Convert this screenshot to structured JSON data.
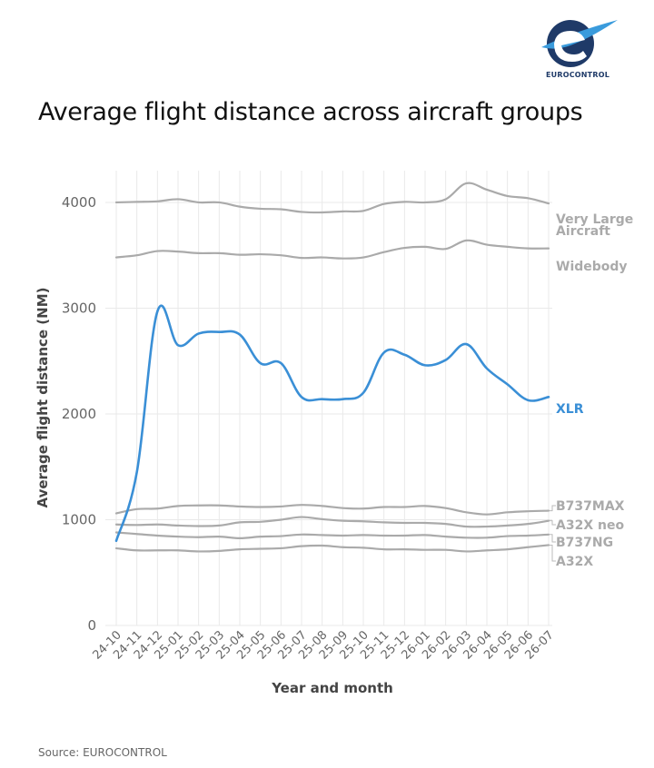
{
  "header": {
    "logo_text": "EUROCONTROL",
    "title": "Average flight distance across aircraft groups"
  },
  "footer": {
    "source": "Source: EUROCONTROL"
  },
  "colors": {
    "highlight": "#3a8fd6",
    "muted": "#aaaaaa",
    "axis_label": "#444444"
  },
  "chart_data": {
    "type": "line",
    "title": "Average flight distance across aircraft groups",
    "xlabel": "Year and month",
    "ylabel": "Average flight distance (NM)",
    "categories": [
      "24-10",
      "24-11",
      "24-12",
      "25-01",
      "25-02",
      "25-03",
      "25-04",
      "25-05",
      "25-06",
      "25-07",
      "25-08",
      "25-09",
      "25-10",
      "25-11",
      "25-12",
      "26-01",
      "26-02",
      "26-03",
      "26-04",
      "26-05",
      "26-06",
      "26-07"
    ],
    "ylim": [
      0,
      4300
    ],
    "yticks": [
      0,
      1000,
      2000,
      3000,
      4000
    ],
    "grid": "vertical",
    "legend": "direct labels at line ends",
    "series": [
      {
        "name": "Very Large Aircraft",
        "label_lines": [
          "Very Large",
          "Aircraft"
        ],
        "highlight": false,
        "values": [
          4000,
          4005,
          4010,
          4030,
          4000,
          4000,
          3960,
          3940,
          3935,
          3910,
          3905,
          3915,
          3920,
          3985,
          4005,
          4000,
          4030,
          4180,
          4120,
          4060,
          4040,
          3990
        ]
      },
      {
        "name": "Widebody",
        "label_lines": [
          "Widebody"
        ],
        "highlight": false,
        "values": [
          3480,
          3500,
          3540,
          3535,
          3520,
          3520,
          3505,
          3510,
          3500,
          3475,
          3480,
          3470,
          3480,
          3530,
          3570,
          3580,
          3560,
          3640,
          3600,
          3580,
          3565,
          3565
        ]
      },
      {
        "name": "XLR",
        "label_lines": [
          "XLR"
        ],
        "highlight": true,
        "values": [
          800,
          1450,
          2970,
          2650,
          2760,
          2775,
          2750,
          2480,
          2480,
          2160,
          2140,
          2140,
          2200,
          2580,
          2560,
          2460,
          2510,
          2660,
          2430,
          2280,
          2130,
          2160
        ]
      },
      {
        "name": "B737MAX",
        "label_lines": [
          "B737MAX"
        ],
        "highlight": false,
        "values": [
          1060,
          1100,
          1105,
          1130,
          1135,
          1135,
          1125,
          1120,
          1125,
          1140,
          1130,
          1110,
          1105,
          1120,
          1120,
          1130,
          1110,
          1070,
          1050,
          1070,
          1080,
          1085
        ]
      },
      {
        "name": "A32X neo",
        "label_lines": [
          "A32X neo"
        ],
        "highlight": false,
        "values": [
          955,
          950,
          955,
          945,
          940,
          945,
          975,
          980,
          1000,
          1025,
          1005,
          990,
          985,
          975,
          970,
          970,
          960,
          935,
          935,
          945,
          960,
          990
        ]
      },
      {
        "name": "B737NG",
        "label_lines": [
          "B737NG"
        ],
        "highlight": false,
        "values": [
          880,
          865,
          850,
          840,
          835,
          840,
          825,
          840,
          845,
          860,
          855,
          850,
          855,
          850,
          850,
          855,
          840,
          830,
          830,
          845,
          850,
          860
        ]
      },
      {
        "name": "A32X",
        "label_lines": [
          "A32X"
        ],
        "highlight": false,
        "values": [
          730,
          710,
          710,
          710,
          700,
          705,
          720,
          725,
          730,
          750,
          755,
          740,
          735,
          720,
          720,
          715,
          715,
          700,
          710,
          720,
          740,
          760
        ]
      }
    ]
  }
}
